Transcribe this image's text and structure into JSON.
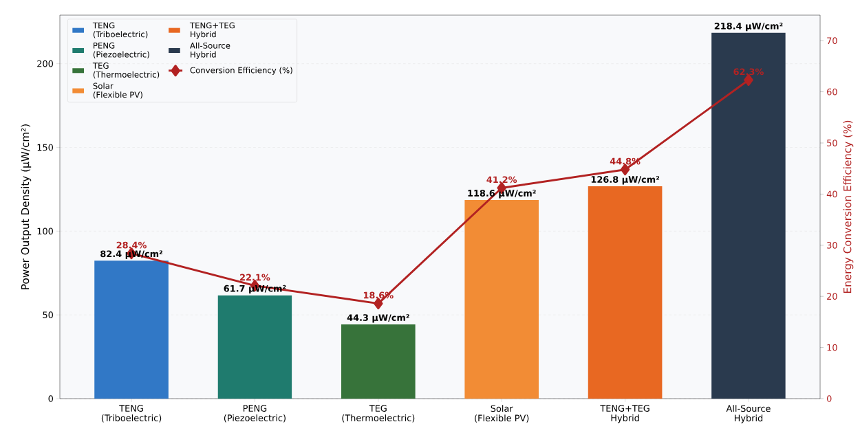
{
  "chart_data": {
    "type": "bar",
    "categories": [
      "TENG\n(Triboelectric)",
      "PENG\n(Piezoelectric)",
      "TEG\n(Thermoelectric)",
      "Solar\n(Flexible PV)",
      "TENG+TEG\nHybrid",
      "All-Source\nHybrid"
    ],
    "ylabel": "Power Output Density (µW/cm²)",
    "y2label": "Energy Conversion Efficiency (%)",
    "series": [
      {
        "colors": [
          "#3178c6",
          "#1f7b6e",
          "#37733a",
          "#f28c35",
          "#e86822",
          "#2a3a4e"
        ],
        "values": [
          82.4,
          61.7,
          44.3,
          118.6,
          126.8,
          218.4
        ],
        "value_labels": [
          "82.4 µW/cm²",
          "61.7 µW/cm²",
          "44.3 µW/cm²",
          "118.6 µW/cm²",
          "126.8 µW/cm²",
          "218.4 µW/cm²"
        ]
      },
      {
        "type": "line",
        "name": "Conversion Efficiency (%)",
        "axis": "y2",
        "color": "#b22222",
        "marker": "diamond",
        "values": [
          28.4,
          22.1,
          18.6,
          41.2,
          44.8,
          62.3
        ],
        "value_labels": [
          "28.4%",
          "22.1%",
          "18.6%",
          "41.2%",
          "44.8%",
          "62.3%"
        ]
      }
    ],
    "ylim": [
      0,
      229
    ],
    "yticks": [
      0,
      50,
      100,
      150,
      200
    ],
    "y2lim": [
      0,
      75
    ],
    "y2ticks": [
      0,
      10,
      20,
      30,
      40,
      50,
      60,
      70
    ],
    "grid": "y",
    "legend": "top left"
  }
}
